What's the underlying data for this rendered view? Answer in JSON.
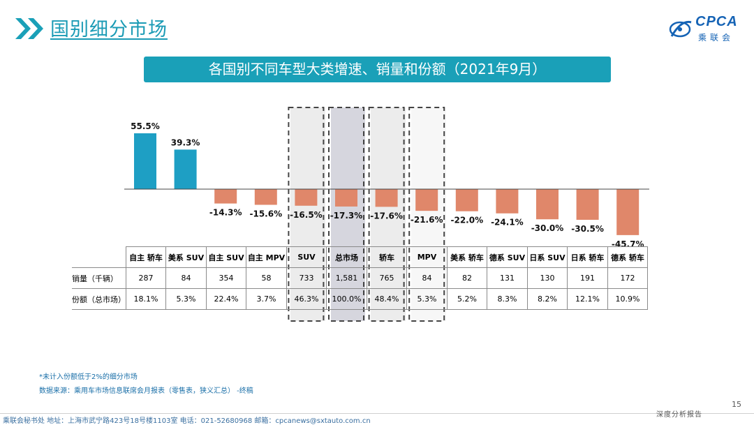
{
  "header": {
    "title": "国别细分市场",
    "logo_text": "CPCA",
    "logo_sub": "乘联会"
  },
  "banner": {
    "title": "各国别不同车型大类增速、销量和份额（2021年9月）"
  },
  "colors": {
    "positive": "#1e9fc4",
    "negative": "#e0876a",
    "accent": "#1aa0b8"
  },
  "chart_data": {
    "type": "bar",
    "categories": [
      "自主 轿车",
      "美系 SUV",
      "自主 SUV",
      "自主 MPV",
      "SUV",
      "总市场",
      "轿车",
      "MPV",
      "美系 轿车",
      "德系 SUV",
      "日系 SUV",
      "日系 轿车",
      "德系 轿车"
    ],
    "values": [
      55.5,
      39.3,
      -14.3,
      -15.6,
      -16.5,
      -17.3,
      -17.6,
      -21.6,
      -22.0,
      -24.1,
      -30.0,
      -30.5,
      -45.7
    ],
    "value_labels": [
      "55.5%",
      "39.3%",
      "-14.3%",
      "-15.6%",
      "-16.5%",
      "-17.3%",
      "-17.6%",
      "-21.6%",
      "-22.0%",
      "-24.1%",
      "-30.0%",
      "-30.5%",
      "-45.7%"
    ],
    "unit": "%",
    "highlighted": [
      "SUV",
      "总市场",
      "轿车",
      "MPV"
    ]
  },
  "table": {
    "rows": [
      {
        "label": "销量（千辆）",
        "values": [
          "287",
          "84",
          "354",
          "58",
          "733",
          "1,581",
          "765",
          "84",
          "82",
          "131",
          "130",
          "191",
          "172"
        ]
      },
      {
        "label": "份额（总市场）",
        "values": [
          "18.1%",
          "5.3%",
          "22.4%",
          "3.7%",
          "46.3%",
          "100.0%",
          "48.4%",
          "5.3%",
          "5.2%",
          "8.3%",
          "8.2%",
          "12.1%",
          "10.9%"
        ]
      }
    ]
  },
  "notes": {
    "note1": "*未计入份额低于2%的细分市场",
    "source": "数据来源：乘用车市场信息联席会月报表（零售表，狭义汇总）  -终稿"
  },
  "page_number": "15",
  "footer": {
    "left": "乘联会秘书处   地址：上海市武宁路423号18号楼1103室   电话：021-52680968   邮箱：cpcanews@sxtauto.com.cn",
    "right": "深度分析报告"
  }
}
